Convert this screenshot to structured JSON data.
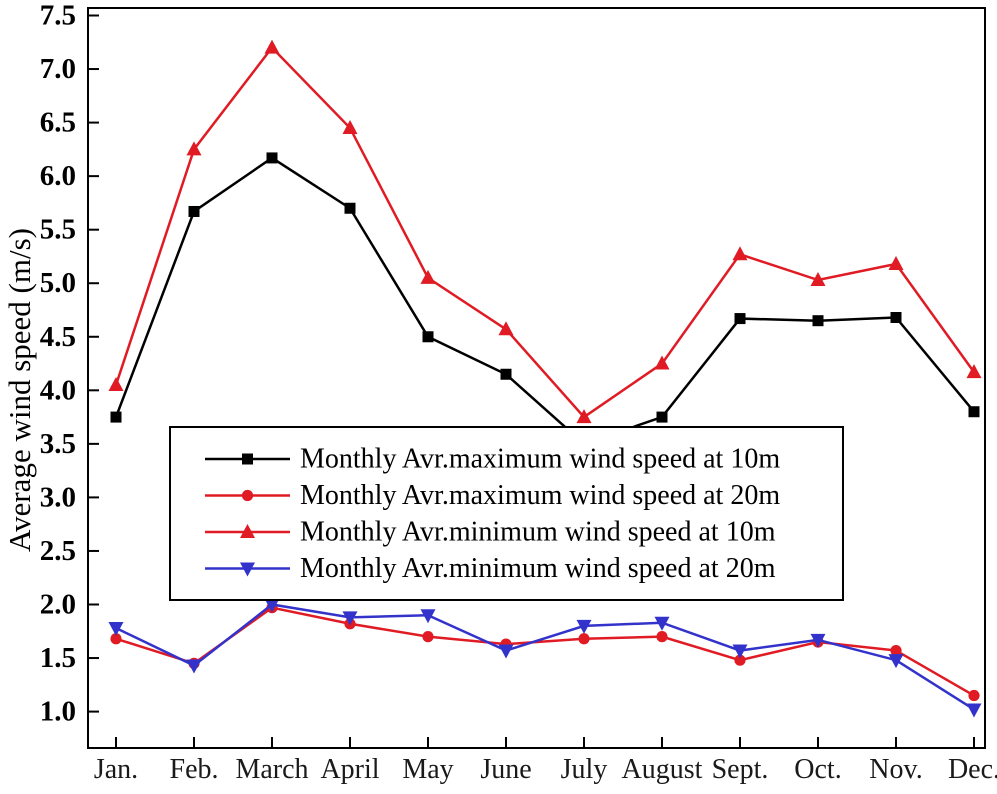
{
  "chart_data": {
    "type": "line",
    "title": "",
    "xlabel": "",
    "ylabel": "Average wind speed (m/s)",
    "categories": [
      "Jan.",
      "Feb.",
      "March",
      "April",
      "May",
      "June",
      "July",
      "August",
      "Sept.",
      "Oct.",
      "Nov.",
      "Dec."
    ],
    "y_tick_labels": [
      "1.0",
      "1.5",
      "2.0",
      "2.5",
      "3.0",
      "3.5",
      "4.0",
      "4.5",
      "5.0",
      "5.5",
      "6.0",
      "6.5",
      "7.0",
      "7.5"
    ],
    "ylim": [
      0.66,
      7.57
    ],
    "grid": false,
    "legend": {
      "position": "inside-center-left",
      "background": "#ffffff",
      "border_color": "#000000"
    },
    "series": [
      {
        "name": "Monthly Avr.maximum wind speed at 10m",
        "color": "#000000",
        "marker": "square",
        "values": [
          3.75,
          5.67,
          6.17,
          5.7,
          4.5,
          4.15,
          3.5,
          3.75,
          4.67,
          4.65,
          4.68,
          3.8
        ]
      },
      {
        "name": "Monthly Avr.maximum wind speed at 20m",
        "color": "#e01b24",
        "marker": "circle",
        "values": [
          1.68,
          1.45,
          1.97,
          1.82,
          1.7,
          1.63,
          1.68,
          1.7,
          1.48,
          1.65,
          1.57,
          1.15
        ]
      },
      {
        "name": "Monthly Avr.minimum wind speed at 10m",
        "color": "#e01b24",
        "marker": "triangle-up",
        "values": [
          4.05,
          6.25,
          7.2,
          6.45,
          5.05,
          4.57,
          3.75,
          4.25,
          5.27,
          5.03,
          5.18,
          4.17
        ]
      },
      {
        "name": "Monthly Avr.minimum wind speed at 20m",
        "color": "#3333cc",
        "marker": "triangle-down",
        "values": [
          1.78,
          1.43,
          2.0,
          1.88,
          1.9,
          1.57,
          1.8,
          1.83,
          1.57,
          1.67,
          1.48,
          1.02
        ]
      }
    ]
  }
}
